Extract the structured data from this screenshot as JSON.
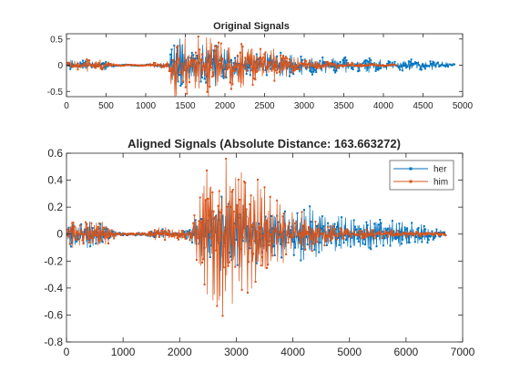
{
  "figure": {
    "background": "#ffffff"
  },
  "colors": {
    "her": "#0072BD",
    "him": "#D95319",
    "axis": "#262626"
  },
  "chart_data": [
    {
      "type": "line",
      "title": "Original Signals",
      "xlim": [
        0,
        5000
      ],
      "ylim": [
        -0.6,
        0.6
      ],
      "xticks": [
        0,
        500,
        1000,
        1500,
        2000,
        2500,
        3000,
        3500,
        4000,
        4500,
        5000
      ],
      "xtick_labels": [
        "0",
        "500",
        "1000",
        "1500",
        "2000",
        "2500",
        "3000",
        "3500",
        "4000",
        "4500",
        "5000"
      ],
      "yticks": [
        -0.5,
        0,
        0.5
      ],
      "ytick_labels": [
        "-0.5",
        "0",
        "0.5"
      ],
      "grid": false,
      "legend": null,
      "series": [
        {
          "color": "#0072BD",
          "length": 4900,
          "envelope": [
            [
              0,
              0.02
            ],
            [
              30,
              0.06
            ],
            [
              60,
              0.1
            ],
            [
              120,
              0.06
            ],
            [
              200,
              0.08
            ],
            [
              280,
              0.1
            ],
            [
              350,
              0.05
            ],
            [
              420,
              0.1
            ],
            [
              500,
              0.08
            ],
            [
              560,
              0.04
            ],
            [
              600,
              0.02
            ],
            [
              700,
              0.01
            ],
            [
              900,
              0.01
            ],
            [
              1150,
              0.02
            ],
            [
              1200,
              0.04
            ],
            [
              1250,
              0.03
            ],
            [
              1300,
              0.05
            ],
            [
              1320,
              0.35
            ],
            [
              1380,
              0.55
            ],
            [
              1450,
              0.45
            ],
            [
              1550,
              0.3
            ],
            [
              1650,
              0.28
            ],
            [
              1750,
              0.4
            ],
            [
              1850,
              0.42
            ],
            [
              1950,
              0.3
            ],
            [
              2050,
              0.3
            ],
            [
              2200,
              0.22
            ],
            [
              2400,
              0.2
            ],
            [
              2600,
              0.22
            ],
            [
              2800,
              0.2
            ],
            [
              3000,
              0.17
            ],
            [
              3200,
              0.15
            ],
            [
              3400,
              0.14
            ],
            [
              3700,
              0.13
            ],
            [
              4000,
              0.12
            ],
            [
              4300,
              0.11
            ],
            [
              4600,
              0.09
            ],
            [
              4800,
              0.06
            ],
            [
              4900,
              0.02
            ]
          ]
        },
        {
          "color": "#D95319",
          "length": 4160,
          "envelope": [
            [
              0,
              0.02
            ],
            [
              30,
              0.08
            ],
            [
              60,
              0.12
            ],
            [
              120,
              0.07
            ],
            [
              200,
              0.1
            ],
            [
              280,
              0.12
            ],
            [
              350,
              0.06
            ],
            [
              420,
              0.11
            ],
            [
              500,
              0.09
            ],
            [
              560,
              0.05
            ],
            [
              600,
              0.03
            ],
            [
              700,
              0.01
            ],
            [
              900,
              0.01
            ],
            [
              1050,
              0.02
            ],
            [
              1120,
              0.06
            ],
            [
              1200,
              0.05
            ],
            [
              1250,
              0.03
            ],
            [
              1300,
              0.2
            ],
            [
              1330,
              0.6
            ],
            [
              1400,
              0.55
            ],
            [
              1500,
              0.5
            ],
            [
              1600,
              0.45
            ],
            [
              1700,
              0.6
            ],
            [
              1800,
              0.55
            ],
            [
              1900,
              0.5
            ],
            [
              2000,
              0.5
            ],
            [
              2100,
              0.45
            ],
            [
              2200,
              0.4
            ],
            [
              2350,
              0.35
            ],
            [
              2500,
              0.32
            ],
            [
              2650,
              0.28
            ],
            [
              2800,
              0.2
            ],
            [
              3000,
              0.12
            ],
            [
              3200,
              0.08
            ],
            [
              3400,
              0.06
            ],
            [
              3600,
              0.04
            ],
            [
              3800,
              0.03
            ],
            [
              4000,
              0.02
            ],
            [
              4160,
              0.01
            ]
          ]
        }
      ]
    },
    {
      "type": "line",
      "title": "Aligned Signals (Absolute Distance: 163.663272)",
      "xlim": [
        0,
        7000
      ],
      "ylim": [
        -0.8,
        0.6
      ],
      "xticks": [
        0,
        1000,
        2000,
        3000,
        4000,
        5000,
        6000,
        7000
      ],
      "xtick_labels": [
        "0",
        "1000",
        "2000",
        "3000",
        "4000",
        "5000",
        "6000",
        "7000"
      ],
      "yticks": [
        -0.8,
        -0.6,
        -0.4,
        -0.2,
        0,
        0.2,
        0.4,
        0.6
      ],
      "ytick_labels": [
        "-0.8",
        "-0.6",
        "-0.4",
        "-0.2",
        "0",
        "0.2",
        "0.4",
        "0.6"
      ],
      "grid": false,
      "legend": "top-right",
      "series": [
        {
          "name": "her",
          "color": "#0072BD",
          "length": 6700,
          "envelope": [
            [
              0,
              0.02
            ],
            [
              50,
              0.06
            ],
            [
              100,
              0.1
            ],
            [
              200,
              0.06
            ],
            [
              300,
              0.08
            ],
            [
              400,
              0.1
            ],
            [
              500,
              0.08
            ],
            [
              600,
              0.08
            ],
            [
              700,
              0.06
            ],
            [
              800,
              0.04
            ],
            [
              900,
              0.01
            ],
            [
              1400,
              0.01
            ],
            [
              1500,
              0.02
            ],
            [
              1700,
              0.04
            ],
            [
              1800,
              0.02
            ],
            [
              2100,
              0.03
            ],
            [
              2200,
              0.05
            ],
            [
              2400,
              0.15
            ],
            [
              2600,
              0.3
            ],
            [
              2800,
              0.3
            ],
            [
              3000,
              0.25
            ],
            [
              3200,
              0.2
            ],
            [
              3400,
              0.22
            ],
            [
              3600,
              0.2
            ],
            [
              3800,
              0.18
            ],
            [
              4000,
              0.15
            ],
            [
              4200,
              0.22
            ],
            [
              4400,
              0.18
            ],
            [
              4600,
              0.13
            ],
            [
              4800,
              0.12
            ],
            [
              5000,
              0.12
            ],
            [
              5500,
              0.1
            ],
            [
              6000,
              0.09
            ],
            [
              6400,
              0.06
            ],
            [
              6600,
              0.03
            ],
            [
              6700,
              0.01
            ]
          ]
        },
        {
          "name": "him",
          "color": "#D95319",
          "length": 6700,
          "envelope": [
            [
              0,
              0.02
            ],
            [
              50,
              0.08
            ],
            [
              100,
              0.12
            ],
            [
              200,
              0.07
            ],
            [
              300,
              0.1
            ],
            [
              400,
              0.12
            ],
            [
              500,
              0.1
            ],
            [
              600,
              0.09
            ],
            [
              700,
              0.07
            ],
            [
              800,
              0.05
            ],
            [
              900,
              0.01
            ],
            [
              1400,
              0.01
            ],
            [
              1500,
              0.03
            ],
            [
              1700,
              0.06
            ],
            [
              1800,
              0.04
            ],
            [
              2100,
              0.04
            ],
            [
              2200,
              0.06
            ],
            [
              2400,
              0.35
            ],
            [
              2550,
              0.6
            ],
            [
              2700,
              0.55
            ],
            [
              2900,
              0.5
            ],
            [
              3100,
              0.45
            ],
            [
              3300,
              0.4
            ],
            [
              3500,
              0.32
            ],
            [
              3700,
              0.22
            ],
            [
              3900,
              0.2
            ],
            [
              4100,
              0.18
            ],
            [
              4300,
              0.12
            ],
            [
              4500,
              0.08
            ],
            [
              4700,
              0.06
            ],
            [
              5000,
              0.04
            ],
            [
              5500,
              0.03
            ],
            [
              6000,
              0.02
            ],
            [
              6700,
              0.01
            ]
          ]
        }
      ]
    }
  ]
}
